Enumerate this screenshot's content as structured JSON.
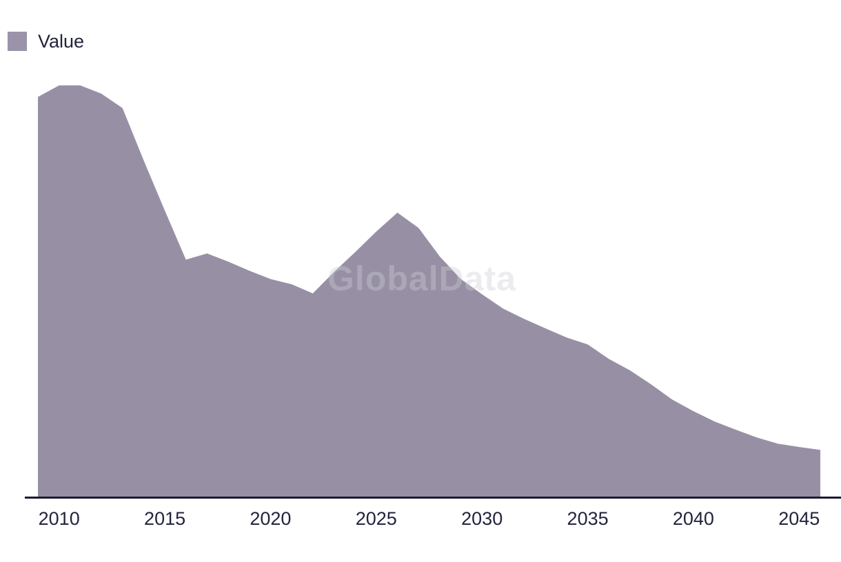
{
  "chart_data": {
    "type": "area",
    "title": "",
    "xlabel": "",
    "ylabel": "",
    "legend": [
      "Value"
    ],
    "legend_position": "top-left",
    "watermark": "GlobalData",
    "grid": false,
    "y_axis_visible": false,
    "ylim": [
      0,
      100
    ],
    "value_scale_note": "y-axis unlabeled; values are relative units, 100 = peak (2010-2011)",
    "x": [
      2009,
      2010,
      2011,
      2012,
      2013,
      2014,
      2015,
      2016,
      2017,
      2018,
      2019,
      2020,
      2021,
      2022,
      2023,
      2024,
      2025,
      2026,
      2027,
      2028,
      2029,
      2030,
      2031,
      2032,
      2033,
      2034,
      2035,
      2036,
      2037,
      2038,
      2039,
      2040,
      2041,
      2042,
      2043,
      2044,
      2045,
      2046
    ],
    "series": [
      {
        "name": "Value",
        "values": [
          97.2,
          100,
          100,
          98.0,
          94.5,
          81.8,
          69.6,
          57.7,
          59.2,
          57.2,
          55.0,
          53.0,
          51.7,
          49.5,
          54.7,
          59.5,
          64.5,
          69.1,
          65.4,
          58.5,
          53.0,
          49.3,
          45.8,
          43.3,
          41.0,
          38.8,
          37.1,
          33.6,
          30.8,
          27.4,
          23.7,
          20.9,
          18.4,
          16.4,
          14.5,
          13.0,
          12.2,
          11.5
        ]
      }
    ],
    "tick_years": [
      "2010",
      "2015",
      "2020",
      "2025",
      "2030",
      "2035",
      "2040",
      "2045"
    ],
    "colors": {
      "area_fill": "#9790A5",
      "legend_swatch": "#9A93A9",
      "axis_line": "#1B1B33",
      "label_text": "#23233E"
    }
  }
}
